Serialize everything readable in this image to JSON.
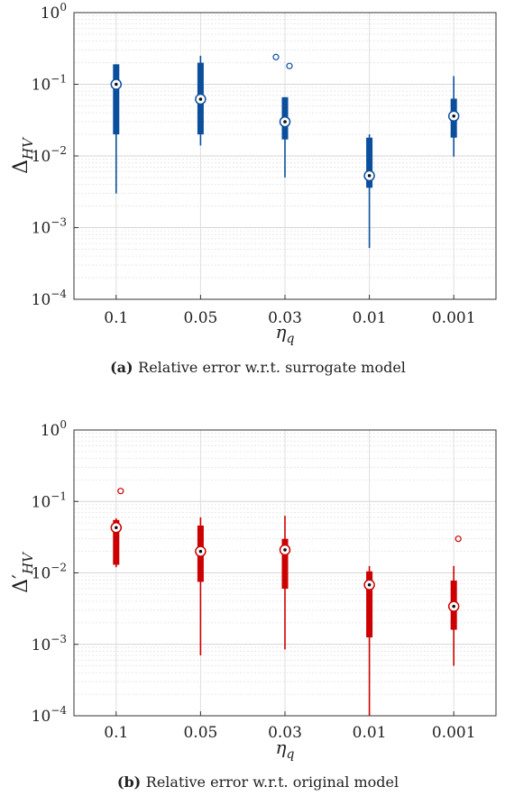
{
  "chart_data": [
    {
      "type": "box",
      "caption_tag": "(a)",
      "caption_text": "Relative error w.r.t. surrogate model",
      "ylabel": "Δ_HV",
      "xlabel": "η_q",
      "yscale": "log",
      "ylim": [
        0.0001,
        1
      ],
      "ytick_labels": [
        "10^-4",
        "10^-3",
        "10^-2",
        "10^-1",
        "10^0"
      ],
      "grid": true,
      "color": "#0b4f9c",
      "categories": [
        "0.1",
        "0.05",
        "0.03",
        "0.01",
        "0.001"
      ],
      "boxes": [
        {
          "whisker_low": 0.003,
          "q1": 0.02,
          "median": 0.1,
          "q3": 0.19,
          "whisker_high": 0.19,
          "outliers": []
        },
        {
          "whisker_low": 0.014,
          "q1": 0.02,
          "median": 0.062,
          "q3": 0.2,
          "whisker_high": 0.25,
          "outliers": []
        },
        {
          "whisker_low": 0.005,
          "q1": 0.017,
          "median": 0.03,
          "q3": 0.066,
          "whisker_high": 0.066,
          "outliers": [
            0.24,
            0.18
          ]
        },
        {
          "whisker_low": 0.00052,
          "q1": 0.0036,
          "median": 0.0053,
          "q3": 0.018,
          "whisker_high": 0.02,
          "outliers": []
        },
        {
          "whisker_low": 0.0098,
          "q1": 0.018,
          "median": 0.036,
          "q3": 0.063,
          "whisker_high": 0.13,
          "outliers": []
        }
      ]
    },
    {
      "type": "box",
      "caption_tag": "(b)",
      "caption_text": "Relative error w.r.t. original model",
      "ylabel": "Δ′_HV",
      "xlabel": "η_q",
      "yscale": "log",
      "ylim": [
        0.0001,
        1
      ],
      "ytick_labels": [
        "10^-4",
        "10^-3",
        "10^-2",
        "10^-1",
        "10^0"
      ],
      "grid": true,
      "color": "#cc0000",
      "categories": [
        "0.1",
        "0.05",
        "0.03",
        "0.01",
        "0.001"
      ],
      "boxes": [
        {
          "whisker_low": 0.012,
          "q1": 0.013,
          "median": 0.043,
          "q3": 0.055,
          "whisker_high": 0.058,
          "outliers": [
            0.14
          ]
        },
        {
          "whisker_low": 0.0007,
          "q1": 0.0075,
          "median": 0.02,
          "q3": 0.046,
          "whisker_high": 0.06,
          "outliers": []
        },
        {
          "whisker_low": 0.00085,
          "q1": 0.006,
          "median": 0.021,
          "q3": 0.03,
          "whisker_high": 0.063,
          "outliers": []
        },
        {
          "whisker_low": 0.0001,
          "q1": 0.00125,
          "median": 0.0068,
          "q3": 0.0105,
          "whisker_high": 0.0125,
          "outliers": []
        },
        {
          "whisker_low": 0.0005,
          "q1": 0.0016,
          "median": 0.0034,
          "q3": 0.0078,
          "whisker_high": 0.0125,
          "outliers": [
            0.03
          ]
        }
      ]
    }
  ]
}
